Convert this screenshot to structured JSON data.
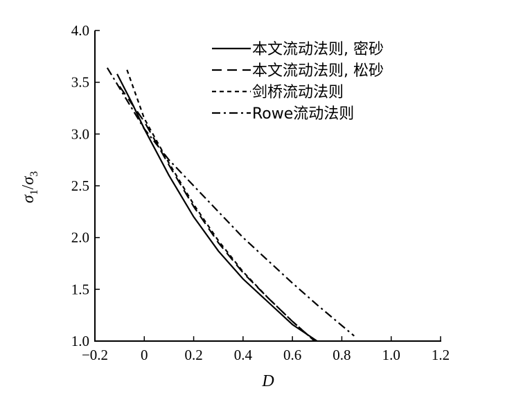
{
  "chart_data": {
    "type": "line",
    "xlabel": "D",
    "ylabel": "σ1/σ3",
    "xlim": [
      -0.2,
      1.2
    ],
    "ylim": [
      1.0,
      4.0
    ],
    "xticks": [
      "−0.2",
      "0",
      "0.2",
      "0.4",
      "0.6",
      "0.8",
      "1.0",
      "1.2"
    ],
    "yticks": [
      "1.0",
      "1.5",
      "2.0",
      "2.5",
      "3.0",
      "3.5",
      "4.0"
    ],
    "grid": false,
    "legend_position": "top-right",
    "series": [
      {
        "name": "本文流动法则, 密砂",
        "style": "solid",
        "points": [
          [
            -0.11,
            3.58
          ],
          [
            -0.05,
            3.3
          ],
          [
            0,
            3.05
          ],
          [
            0.1,
            2.6
          ],
          [
            0.2,
            2.2
          ],
          [
            0.3,
            1.87
          ],
          [
            0.4,
            1.6
          ],
          [
            0.5,
            1.38
          ],
          [
            0.6,
            1.16
          ],
          [
            0.7,
            1.0
          ]
        ]
      },
      {
        "name": "本文流动法则, 松砂",
        "style": "dashed",
        "points": [
          [
            -0.1,
            3.46
          ],
          [
            0,
            3.12
          ],
          [
            0.1,
            2.7
          ],
          [
            0.2,
            2.3
          ],
          [
            0.3,
            1.95
          ],
          [
            0.4,
            1.66
          ],
          [
            0.5,
            1.42
          ],
          [
            0.6,
            1.19
          ],
          [
            0.69,
            1.0
          ]
        ]
      },
      {
        "name": "剑桥流动法则",
        "style": "dotted",
        "points": [
          [
            -0.07,
            3.62
          ],
          [
            0,
            3.15
          ],
          [
            0.1,
            2.72
          ],
          [
            0.2,
            2.32
          ],
          [
            0.3,
            1.97
          ],
          [
            0.4,
            1.67
          ],
          [
            0.5,
            1.42
          ],
          [
            0.6,
            1.19
          ],
          [
            0.69,
            1.0
          ]
        ]
      },
      {
        "name": "Rowe流动法则",
        "style": "dashdot",
        "points": [
          [
            -0.15,
            3.64
          ],
          [
            0,
            3.05
          ],
          [
            0.1,
            2.75
          ],
          [
            0.2,
            2.5
          ],
          [
            0.3,
            2.25
          ],
          [
            0.4,
            2.0
          ],
          [
            0.5,
            1.78
          ],
          [
            0.6,
            1.56
          ],
          [
            0.7,
            1.35
          ],
          [
            0.8,
            1.15
          ],
          [
            0.85,
            1.05
          ]
        ]
      }
    ]
  }
}
